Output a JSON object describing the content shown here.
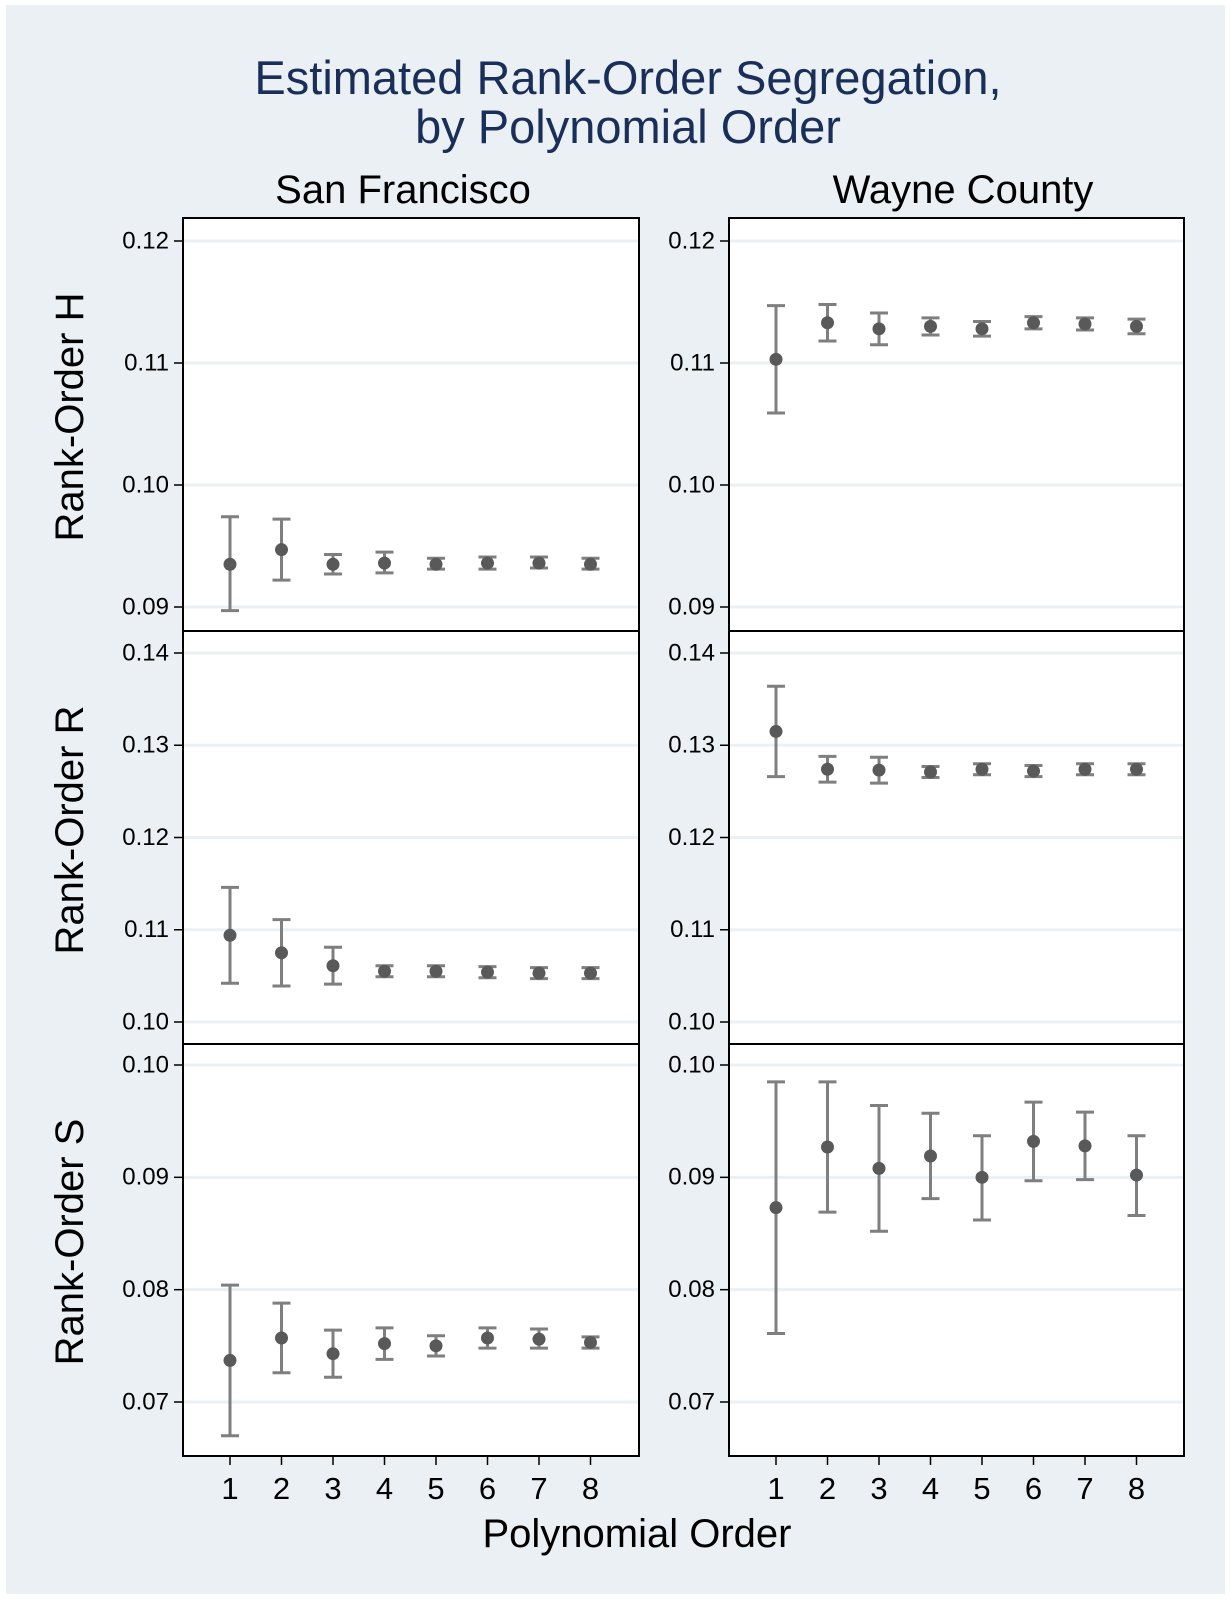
{
  "colors": {
    "background": "#eaf0f3",
    "plot_bg": "#ffffff",
    "grid": "#eaf0f3",
    "marker": "#595959",
    "errorbar": "#7f7f7f",
    "title": "#1a2e5a"
  },
  "chart_data": {
    "type": "scatter",
    "title_lines": [
      "Estimated Rank-Order Segregation,",
      "by Polynomial Order"
    ],
    "xlabel": "Polynomial Order",
    "columns": [
      "San Francisco",
      "Wayne County"
    ],
    "rows": [
      {
        "ylabel": "Rank-Order H",
        "ylim": [
          0.09,
          0.12
        ],
        "yticks": [
          "0.12",
          "0.11",
          "0.10",
          "0.09"
        ]
      },
      {
        "ylabel": "Rank-Order R",
        "ylim": [
          0.1,
          0.14
        ],
        "yticks": [
          "0.14",
          "0.13",
          "0.12",
          "0.11",
          "0.10"
        ]
      },
      {
        "ylabel": "Rank-Order S",
        "ylim": [
          0.07,
          0.1
        ],
        "yticks": [
          "0.10",
          "0.09",
          "0.08",
          "0.07"
        ]
      }
    ],
    "x": [
      1,
      2,
      3,
      4,
      5,
      6,
      7,
      8
    ],
    "x_tick_labels": [
      "1",
      "2",
      "3",
      "4",
      "5",
      "6",
      "7",
      "8"
    ],
    "grid": true,
    "panels": [
      {
        "row": 0,
        "col": 0,
        "y": [
          0.0935,
          0.0947,
          0.0935,
          0.0936,
          0.0935,
          0.0936,
          0.0936,
          0.0935
        ],
        "lo": [
          0.0897,
          0.0922,
          0.0927,
          0.0928,
          0.0931,
          0.0931,
          0.0932,
          0.0931
        ],
        "hi": [
          0.0974,
          0.0972,
          0.0943,
          0.0945,
          0.094,
          0.0941,
          0.0941,
          0.094
        ]
      },
      {
        "row": 0,
        "col": 1,
        "y": [
          0.1103,
          0.1133,
          0.1128,
          0.113,
          0.1128,
          0.1133,
          0.1132,
          0.113
        ],
        "lo": [
          0.1059,
          0.1118,
          0.1115,
          0.1123,
          0.1122,
          0.1128,
          0.1127,
          0.1124
        ],
        "hi": [
          0.1147,
          0.1148,
          0.1141,
          0.1137,
          0.1134,
          0.1138,
          0.1137,
          0.1136
        ]
      },
      {
        "row": 1,
        "col": 0,
        "y": [
          0.1094,
          0.1075,
          0.1061,
          0.1055,
          0.1055,
          0.1054,
          0.1053,
          0.1053
        ],
        "lo": [
          0.1042,
          0.1039,
          0.1041,
          0.1049,
          0.1049,
          0.1048,
          0.1047,
          0.1047
        ],
        "hi": [
          0.1146,
          0.1111,
          0.1081,
          0.1061,
          0.1061,
          0.106,
          0.1059,
          0.1059
        ]
      },
      {
        "row": 1,
        "col": 1,
        "y": [
          0.1315,
          0.1274,
          0.1273,
          0.1271,
          0.1274,
          0.1272,
          0.1274,
          0.1274
        ],
        "lo": [
          0.1266,
          0.126,
          0.1259,
          0.1265,
          0.1268,
          0.1266,
          0.1268,
          0.1268
        ],
        "hi": [
          0.1364,
          0.1288,
          0.1287,
          0.1277,
          0.128,
          0.1278,
          0.128,
          0.128
        ]
      },
      {
        "row": 2,
        "col": 0,
        "y": [
          0.0737,
          0.0757,
          0.0743,
          0.0752,
          0.075,
          0.0757,
          0.0756,
          0.0753
        ],
        "lo": [
          0.067,
          0.0726,
          0.0722,
          0.0738,
          0.0741,
          0.0748,
          0.0748,
          0.0748
        ],
        "hi": [
          0.0804,
          0.0788,
          0.0764,
          0.0766,
          0.0759,
          0.0766,
          0.0765,
          0.0758
        ]
      },
      {
        "row": 2,
        "col": 1,
        "y": [
          0.0873,
          0.0927,
          0.0908,
          0.0919,
          0.09,
          0.0932,
          0.0928,
          0.0902
        ],
        "lo": [
          0.0761,
          0.0869,
          0.0852,
          0.0881,
          0.0862,
          0.0897,
          0.0898,
          0.0866
        ],
        "hi": [
          0.0985,
          0.0985,
          0.0964,
          0.0957,
          0.0937,
          0.0967,
          0.0958,
          0.0937
        ]
      }
    ]
  }
}
